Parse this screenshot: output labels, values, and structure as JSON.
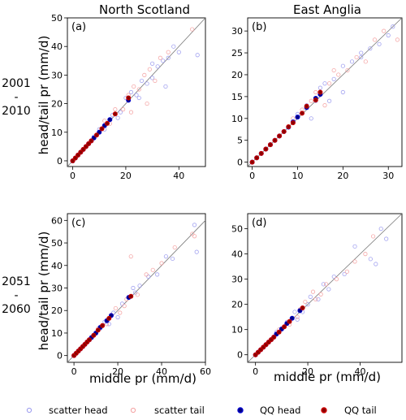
{
  "column_titles": [
    "North Scotland",
    "East Anglia"
  ],
  "row_labels": [
    {
      "line1": "2001",
      "line2": "-",
      "line3": "2010"
    },
    {
      "line1": "2051",
      "line2": "-",
      "line3": "2060"
    }
  ],
  "ylabel": "head/tail pr (mm/d)",
  "xlabel": "middle pr (mm/d)",
  "legend": [
    {
      "label": "scatter head",
      "style": "hollow",
      "color": "#9999ee"
    },
    {
      "label": "scatter tail",
      "style": "hollow",
      "color": "#f4a0a0"
    },
    {
      "label": "QQ head",
      "style": "filled",
      "color": "#0000cc"
    },
    {
      "label": "QQ tail",
      "style": "filled",
      "color": "#cc0000"
    }
  ],
  "colors": {
    "scatter_head": "#9999ee",
    "scatter_tail": "#f4a0a0",
    "qq_head_fill": "#000080",
    "qq_head_edge": "#0000cc",
    "qq_tail_fill": "#8b0000",
    "qq_tail_edge": "#cc0000",
    "one_to_one": "#777777"
  },
  "chart_data": [
    {
      "type": "scatter",
      "panel": "(a)",
      "title": "North Scotland",
      "xlim": [
        -2,
        50
      ],
      "ylim": [
        -2,
        50
      ],
      "xticks": [
        0,
        20,
        40
      ],
      "yticks": [
        0,
        10,
        20,
        30,
        40,
        50
      ],
      "one_to_one": true,
      "scatter_head": [
        [
          8,
          8.5
        ],
        [
          12,
          11
        ],
        [
          15,
          16
        ],
        [
          18,
          17
        ],
        [
          22,
          24
        ],
        [
          24,
          23
        ],
        [
          26,
          28
        ],
        [
          28,
          27
        ],
        [
          30,
          29
        ],
        [
          32,
          33
        ],
        [
          34,
          35
        ],
        [
          36,
          36
        ],
        [
          38,
          40
        ],
        [
          40,
          38
        ],
        [
          47,
          37
        ],
        [
          35,
          26
        ],
        [
          30,
          34
        ],
        [
          25,
          22
        ],
        [
          20,
          22
        ],
        [
          17,
          15
        ],
        [
          10,
          11
        ],
        [
          5,
          5
        ]
      ],
      "scatter_tail": [
        [
          9,
          9
        ],
        [
          14,
          13
        ],
        [
          16,
          18
        ],
        [
          19,
          18
        ],
        [
          21,
          23
        ],
        [
          23,
          26
        ],
        [
          25,
          25
        ],
        [
          27,
          30
        ],
        [
          29,
          32
        ],
        [
          31,
          28
        ],
        [
          33,
          36
        ],
        [
          36,
          38
        ],
        [
          45,
          46
        ],
        [
          28,
          20
        ],
        [
          22,
          17
        ],
        [
          12,
          14
        ],
        [
          6,
          6
        ],
        [
          3,
          3
        ]
      ],
      "qq_head": [
        [
          0,
          0
        ],
        [
          1,
          1
        ],
        [
          2,
          2
        ],
        [
          3,
          3
        ],
        [
          4,
          4
        ],
        [
          5,
          5
        ],
        [
          6,
          6
        ],
        [
          7,
          7
        ],
        [
          8,
          8
        ],
        [
          10,
          10
        ],
        [
          12,
          12.3
        ],
        [
          14,
          14.4
        ],
        [
          21,
          21.2
        ]
      ],
      "qq_tail": [
        [
          0,
          0
        ],
        [
          1,
          1
        ],
        [
          2,
          2
        ],
        [
          3,
          3
        ],
        [
          4,
          4
        ],
        [
          5,
          5
        ],
        [
          6,
          6
        ],
        [
          7,
          7
        ],
        [
          9,
          9
        ],
        [
          11,
          11.2
        ],
        [
          13,
          13.1
        ],
        [
          16,
          16.4
        ],
        [
          21,
          22
        ]
      ]
    },
    {
      "type": "scatter",
      "panel": "(b)",
      "title": "East Anglia",
      "xlim": [
        -1,
        33
      ],
      "ylim": [
        -1,
        33
      ],
      "xticks": [
        0,
        10,
        20,
        30
      ],
      "yticks": [
        0,
        5,
        10,
        15,
        20,
        25,
        30
      ],
      "one_to_one": true,
      "scatter_head": [
        [
          8,
          8
        ],
        [
          10,
          11
        ],
        [
          12,
          13
        ],
        [
          14,
          14
        ],
        [
          15,
          17
        ],
        [
          16,
          18
        ],
        [
          18,
          19
        ],
        [
          20,
          22
        ],
        [
          22,
          23
        ],
        [
          24,
          24
        ],
        [
          26,
          26
        ],
        [
          28,
          27
        ],
        [
          30,
          29
        ],
        [
          31,
          31
        ],
        [
          20,
          16
        ],
        [
          24,
          25
        ],
        [
          17,
          14
        ],
        [
          13,
          10
        ]
      ],
      "scatter_tail": [
        [
          9,
          10
        ],
        [
          11,
          12
        ],
        [
          13,
          14
        ],
        [
          14,
          16
        ],
        [
          15,
          16
        ],
        [
          17,
          18
        ],
        [
          19,
          20
        ],
        [
          21,
          21
        ],
        [
          23,
          24
        ],
        [
          25,
          23
        ],
        [
          27,
          28
        ],
        [
          29,
          30
        ],
        [
          32,
          28
        ],
        [
          16,
          13
        ],
        [
          18,
          21
        ]
      ],
      "qq_head": [
        [
          0,
          0
        ],
        [
          1,
          1
        ],
        [
          2,
          2
        ],
        [
          3,
          3
        ],
        [
          4,
          4
        ],
        [
          5,
          5
        ],
        [
          6,
          6
        ],
        [
          7,
          7
        ],
        [
          8,
          8
        ],
        [
          9,
          9.2
        ],
        [
          10,
          10.3
        ],
        [
          12,
          12.5
        ],
        [
          14,
          14.6
        ],
        [
          15,
          15.5
        ]
      ],
      "qq_tail": [
        [
          0,
          0
        ],
        [
          1,
          1
        ],
        [
          2,
          2
        ],
        [
          3,
          3
        ],
        [
          4,
          4
        ],
        [
          5,
          5
        ],
        [
          6,
          6
        ],
        [
          7,
          7
        ],
        [
          8,
          8.1
        ],
        [
          9,
          9
        ],
        [
          11,
          11.2
        ],
        [
          12,
          12.8
        ],
        [
          14,
          14.2
        ],
        [
          15,
          16
        ]
      ]
    },
    {
      "type": "scatter",
      "panel": "(c)",
      "title": "",
      "xlim": [
        -3,
        60
      ],
      "ylim": [
        -3,
        63
      ],
      "xticks": [
        0,
        20,
        40,
        60
      ],
      "yticks": [
        0,
        10,
        20,
        30,
        40,
        50,
        60
      ],
      "one_to_one": true,
      "scatter_head": [
        [
          10,
          10
        ],
        [
          14,
          15
        ],
        [
          18,
          19
        ],
        [
          22,
          23
        ],
        [
          25,
          26
        ],
        [
          28,
          28
        ],
        [
          30,
          31
        ],
        [
          34,
          35
        ],
        [
          38,
          36
        ],
        [
          42,
          44
        ],
        [
          45,
          43
        ],
        [
          55,
          58
        ],
        [
          56,
          46
        ],
        [
          20,
          17
        ],
        [
          16,
          14
        ],
        [
          27,
          30
        ],
        [
          12,
          12
        ]
      ],
      "scatter_tail": [
        [
          11,
          12
        ],
        [
          15,
          14
        ],
        [
          19,
          21
        ],
        [
          21,
          19
        ],
        [
          24,
          25
        ],
        [
          26,
          44
        ],
        [
          29,
          27
        ],
        [
          33,
          36
        ],
        [
          36,
          38
        ],
        [
          40,
          41
        ],
        [
          46,
          48
        ],
        [
          54,
          54
        ],
        [
          55,
          53
        ],
        [
          17,
          18
        ],
        [
          23,
          22
        ]
      ],
      "qq_head": [
        [
          0,
          0
        ],
        [
          1,
          1
        ],
        [
          2,
          2
        ],
        [
          3,
          3
        ],
        [
          4,
          4
        ],
        [
          5,
          5
        ],
        [
          6,
          6
        ],
        [
          7,
          7
        ],
        [
          8,
          8
        ],
        [
          10,
          10
        ],
        [
          12,
          12.5
        ],
        [
          15,
          15.5
        ],
        [
          17,
          17.8
        ],
        [
          25,
          25.8
        ]
      ],
      "qq_tail": [
        [
          0,
          0
        ],
        [
          1,
          1
        ],
        [
          2,
          2
        ],
        [
          3,
          3
        ],
        [
          4,
          4
        ],
        [
          5,
          5
        ],
        [
          6,
          6
        ],
        [
          7,
          7
        ],
        [
          9,
          9
        ],
        [
          11,
          11.3
        ],
        [
          13,
          13.3
        ],
        [
          16,
          16.5
        ],
        [
          26,
          26.3
        ]
      ]
    },
    {
      "type": "scatter",
      "panel": "(d)",
      "title": "",
      "xlim": [
        -3,
        56
      ],
      "ylim": [
        -3,
        56
      ],
      "xticks": [
        0,
        20,
        40
      ],
      "yticks": [
        0,
        10,
        20,
        30,
        40,
        50
      ],
      "one_to_one": true,
      "scatter_head": [
        [
          8,
          9
        ],
        [
          12,
          13
        ],
        [
          15,
          17
        ],
        [
          18,
          17
        ],
        [
          21,
          23
        ],
        [
          24,
          22
        ],
        [
          26,
          28
        ],
        [
          30,
          31
        ],
        [
          34,
          32
        ],
        [
          38,
          43
        ],
        [
          44,
          38
        ],
        [
          46,
          36
        ],
        [
          50,
          46
        ],
        [
          48,
          50
        ],
        [
          20,
          20
        ],
        [
          16,
          14
        ],
        [
          28,
          26
        ]
      ],
      "scatter_tail": [
        [
          9,
          10
        ],
        [
          13,
          12
        ],
        [
          16,
          15
        ],
        [
          19,
          21
        ],
        [
          22,
          25
        ],
        [
          25,
          24
        ],
        [
          27,
          28
        ],
        [
          31,
          30
        ],
        [
          35,
          33
        ],
        [
          38,
          37
        ],
        [
          42,
          40
        ],
        [
          45,
          47
        ],
        [
          17,
          18
        ],
        [
          23,
          22
        ]
      ],
      "qq_head": [
        [
          0,
          0
        ],
        [
          1,
          1
        ],
        [
          2,
          2
        ],
        [
          3,
          3
        ],
        [
          4,
          4
        ],
        [
          5,
          5
        ],
        [
          6,
          6
        ],
        [
          7,
          7
        ],
        [
          8,
          8.2
        ],
        [
          10,
          10.2
        ],
        [
          12,
          12.4
        ],
        [
          14,
          14.5
        ],
        [
          17,
          17.5
        ]
      ],
      "qq_tail": [
        [
          0,
          0
        ],
        [
          1,
          1
        ],
        [
          2,
          2
        ],
        [
          3,
          3
        ],
        [
          4,
          4
        ],
        [
          5,
          5
        ],
        [
          6,
          6
        ],
        [
          7,
          7
        ],
        [
          9,
          9
        ],
        [
          11,
          11.1
        ],
        [
          13,
          13.2
        ],
        [
          18,
          18.6
        ]
      ]
    }
  ]
}
